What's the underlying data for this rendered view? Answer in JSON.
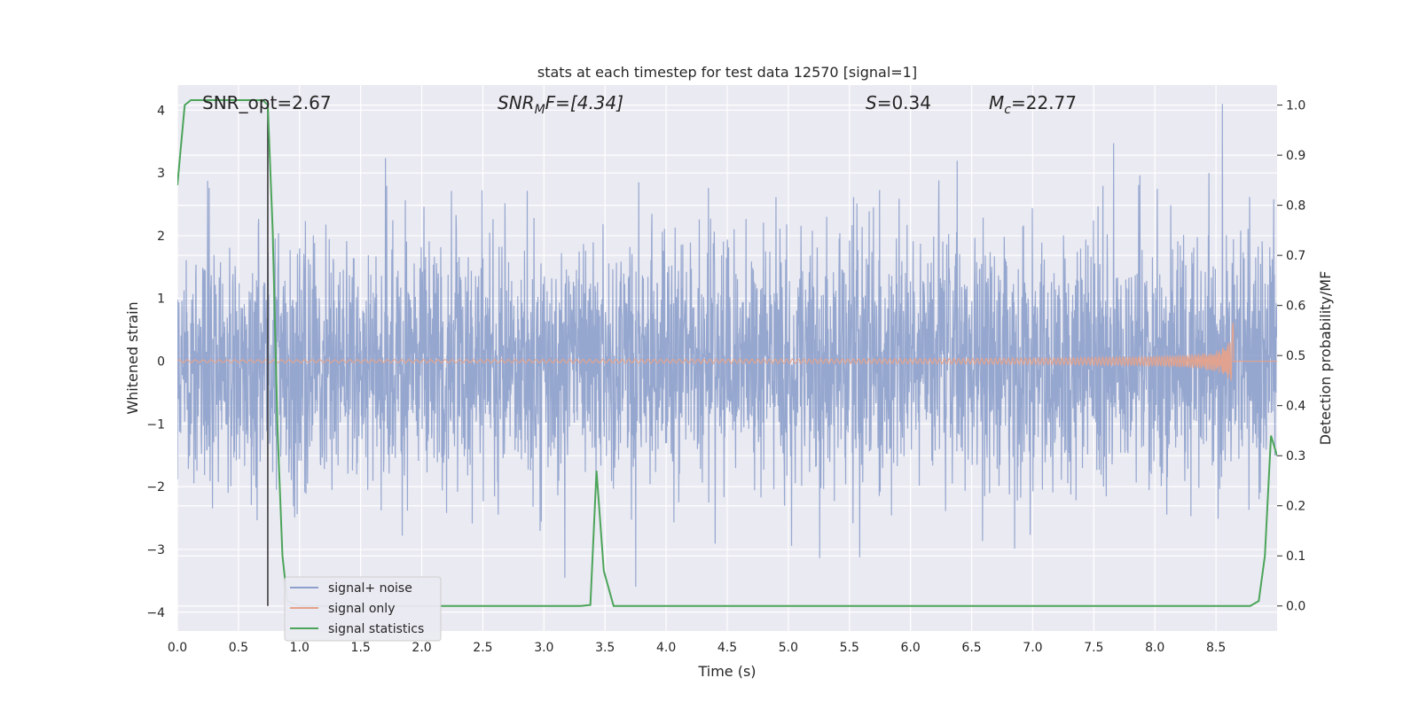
{
  "chart_data": {
    "type": "line",
    "title": "stats at each timestep for test data 12570 [signal=1]",
    "xlabel": "Time (s)",
    "ylabel": "Whitened strain",
    "y2label": "Detection probability/MF",
    "xlim": [
      0,
      9.0
    ],
    "ylim": [
      -4.3,
      4.4
    ],
    "y2lim": [
      -0.05,
      1.04
    ],
    "xticks": [
      0.0,
      0.5,
      1.0,
      1.5,
      2.0,
      2.5,
      3.0,
      3.5,
      4.0,
      4.5,
      5.0,
      5.5,
      6.0,
      6.5,
      7.0,
      7.5,
      8.0,
      8.5
    ],
    "xtick_labels": [
      "0.0",
      "0.5",
      "1.0",
      "1.5",
      "2.0",
      "2.5",
      "3.0",
      "3.5",
      "4.0",
      "4.5",
      "5.0",
      "5.5",
      "6.0",
      "6.5",
      "7.0",
      "7.5",
      "8.0",
      "8.5"
    ],
    "yticks": [
      4,
      3,
      2,
      1,
      0,
      -1,
      -2,
      -3,
      -4
    ],
    "ytick_labels": [
      "4",
      "3",
      "2",
      "1",
      "0",
      "−1",
      "−2",
      "−3",
      "−4"
    ],
    "y2ticks": [
      1.0,
      0.9,
      0.8,
      0.7,
      0.6,
      0.5,
      0.4,
      0.3,
      0.2,
      0.1,
      0.0
    ],
    "y2tick_labels": [
      "1.0",
      "0.9",
      "0.8",
      "0.7",
      "0.6",
      "0.5",
      "0.4",
      "0.3",
      "0.2",
      "0.1",
      "0.0"
    ],
    "grid": true,
    "legend_position": "lower-left",
    "vertical_marker_x": 0.74,
    "annotations": {
      "snr_opt": "SNR_opt=2.67",
      "snr_mf_main": "SNR",
      "snr_mf_sub": "M",
      "snr_mf_rest": "F=[4.34]",
      "s_main": "S",
      "s_rest": "=0.34",
      "mc_main": "M",
      "mc_sub": "c",
      "mc_rest": "=22.77"
    },
    "series": [
      {
        "name": "signal+ noise",
        "color": "#8da0cb",
        "noise_std": 1.0,
        "duration": 9.0
      },
      {
        "name": "signal only",
        "color": "#e5a28b",
        "chirp_end": 8.65,
        "peak_amplitude": 0.65
      },
      {
        "name": "signal statistics",
        "color": "#4ca45a",
        "axis": "right",
        "x": [
          0.0,
          0.06,
          0.11,
          0.2,
          0.4,
          0.6,
          0.7,
          0.74,
          0.78,
          0.82,
          0.86,
          0.9,
          1.0,
          2.0,
          3.0,
          3.2,
          3.3,
          3.38,
          3.43,
          3.49,
          3.57,
          3.7,
          5.0,
          7.0,
          8.0,
          8.7,
          8.78,
          8.85,
          8.9,
          8.95,
          9.0
        ],
        "y": [
          0.84,
          1.0,
          1.01,
          1.01,
          1.01,
          1.01,
          1.01,
          1.0,
          0.75,
          0.35,
          0.1,
          0.01,
          0.0,
          0.0,
          0.0,
          0.0,
          0.0,
          0.002,
          0.27,
          0.07,
          0.0,
          0.0,
          0.0,
          0.0,
          0.0,
          0.0,
          0.0,
          0.01,
          0.1,
          0.34,
          0.3
        ]
      }
    ]
  }
}
